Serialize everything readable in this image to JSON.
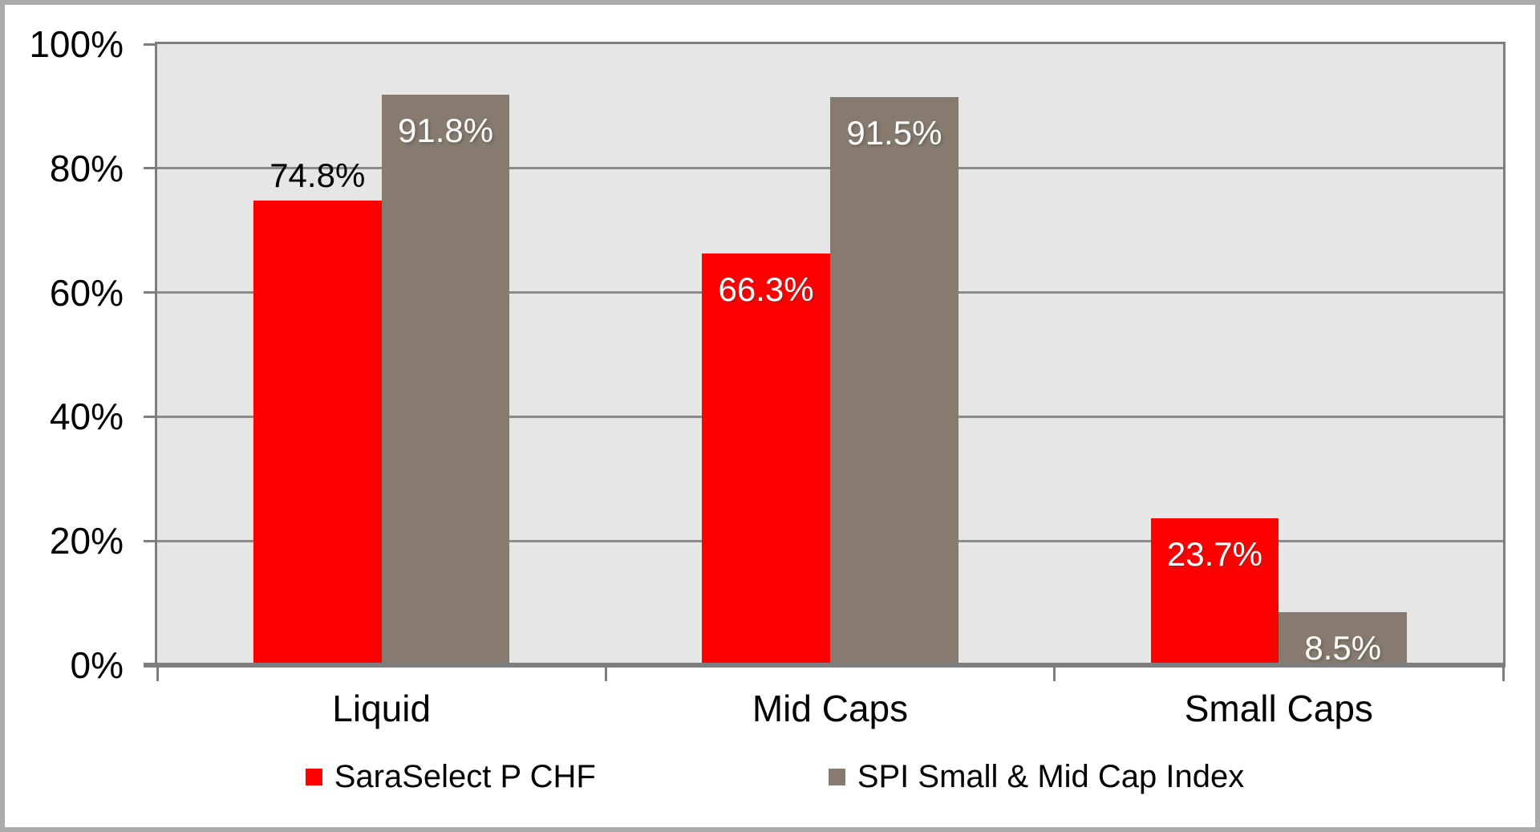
{
  "chart_data": {
    "type": "bar",
    "title": "",
    "categories": [
      "Liquid",
      "Mid Caps",
      "Small Caps"
    ],
    "series": [
      {
        "key": "saraselect-p-chf",
        "name": "SaraSelect P CHF",
        "color": "#FF0000",
        "values": [
          74.8,
          66.3,
          23.7
        ],
        "data_labels": [
          "74.8%",
          "66.3%",
          "23.7%"
        ],
        "label_inside": [
          false,
          true,
          true
        ]
      },
      {
        "key": "spi-small-mid-cap-index",
        "name": "SPI Small & Mid Cap Index",
        "color": "#867B6E",
        "values": [
          91.8,
          91.5,
          8.5
        ],
        "data_labels": [
          "91.8%",
          "91.5%",
          "8.5%"
        ],
        "label_inside": [
          true,
          true,
          true
        ]
      }
    ],
    "y_axis": {
      "min": 0,
      "max": 100,
      "tick_step": 20,
      "tick_labels": [
        "0%",
        "20%",
        "40%",
        "60%",
        "80%",
        "100%"
      ]
    },
    "gridlines": "horizontal",
    "legend_position": "bottom",
    "colors": {
      "plot_background": "#E6E6E6",
      "gridline": "#8B8B8B",
      "axis": "#7E7E7E",
      "frame_border": "#ABABAB",
      "inside_label_text": "#FFFFFF",
      "outside_label_text": "#000000"
    }
  }
}
